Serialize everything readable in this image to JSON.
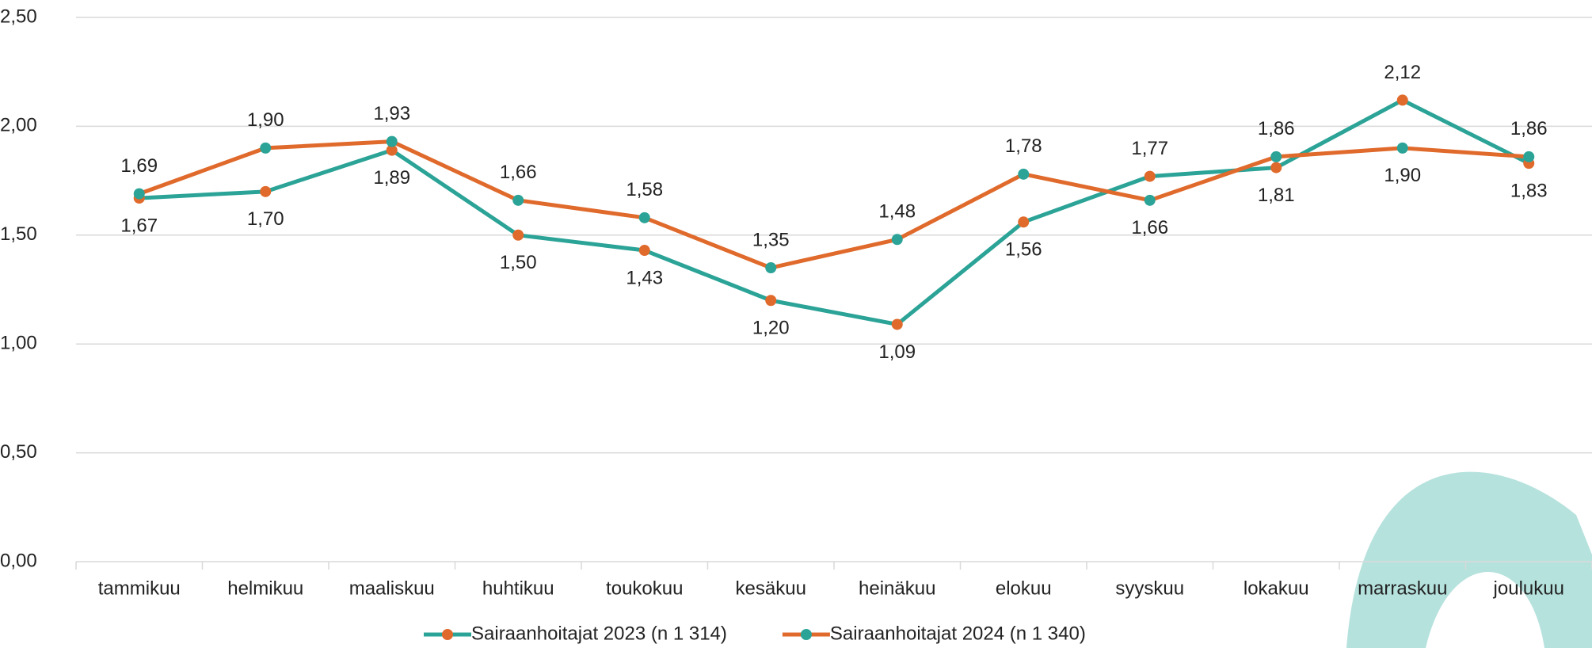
{
  "chart_data": {
    "type": "line",
    "categories": [
      "tammikuu",
      "helmikuu",
      "maaliskuu",
      "huhtikuu",
      "toukokuu",
      "kesäkuu",
      "heinäkuu",
      "elokuu",
      "syyskuu",
      "lokakuu",
      "marraskuu",
      "joulukuu"
    ],
    "series": [
      {
        "name": "Sairaanhoitajat 2023 (n 1 314)",
        "color": "#2ba397",
        "marker_color": "#e06a2c",
        "values": [
          1.67,
          1.7,
          1.89,
          1.5,
          1.43,
          1.2,
          1.09,
          1.56,
          1.77,
          1.81,
          2.12,
          1.83
        ],
        "value_labels": [
          "1,67",
          "1,70",
          "1,89",
          "1,50",
          "1,43",
          "1,20",
          "1,09",
          "1,56",
          "1,77",
          "1,81",
          "2,12",
          "1,83"
        ]
      },
      {
        "name": "Sairaanhoitajat 2024 (n 1 340)",
        "color": "#e06a2c",
        "marker_color": "#2ba397",
        "values": [
          1.69,
          1.9,
          1.93,
          1.66,
          1.58,
          1.35,
          1.48,
          1.78,
          1.66,
          1.86,
          1.9,
          1.86
        ],
        "value_labels": [
          "1,69",
          "1,90",
          "1,93",
          "1,66",
          "1,58",
          "1,35",
          "1,48",
          "1,78",
          "1,66",
          "1,86",
          "1,90",
          "1,86"
        ]
      }
    ],
    "ylim": [
      0,
      2.5
    ],
    "yticks": [
      {
        "value": 0,
        "label": "0,00"
      },
      {
        "value": 0.5,
        "label": "0,50"
      },
      {
        "value": 1,
        "label": "1,00"
      },
      {
        "value": 1.5,
        "label": "1,50"
      },
      {
        "value": 2,
        "label": "2,00"
      },
      {
        "value": 2.5,
        "label": "2,50"
      }
    ],
    "grid": true,
    "legend": "bottom"
  }
}
